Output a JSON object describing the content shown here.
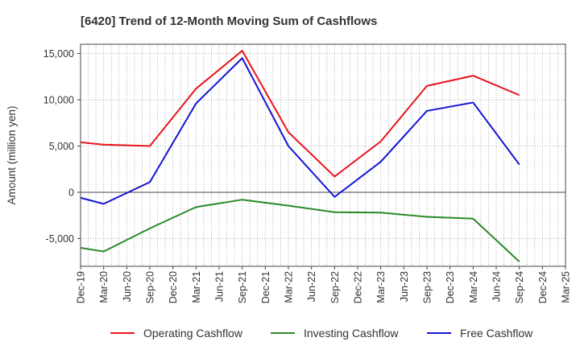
{
  "chart_data": {
    "type": "line",
    "title": "[6420]  Trend of 12-Month Moving Sum of Cashflows",
    "xlabel": "",
    "ylabel": "Amount (million yen)",
    "ylim": [
      -8000,
      16000
    ],
    "yticks": [
      15000,
      10000,
      5000,
      0,
      -5000
    ],
    "ytick_labels": [
      "15,000",
      "10,000",
      "5,000",
      "0",
      "-5,000"
    ],
    "categories": [
      "Dec-19",
      "Mar-20",
      "Jun-20",
      "Sep-20",
      "Dec-20",
      "Mar-21",
      "Jun-21",
      "Sep-21",
      "Dec-21",
      "Mar-22",
      "Jun-22",
      "Sep-22",
      "Dec-22",
      "Mar-23",
      "Jun-23",
      "Sep-23",
      "Dec-23",
      "Mar-24",
      "Jun-24",
      "Sep-24",
      "Dec-24",
      "Mar-25"
    ],
    "grid": true,
    "legend_position": "bottom",
    "series": [
      {
        "name": "Operating Cashflow",
        "color": "#e8141c",
        "points": [
          [
            "Dec-19",
            5400
          ],
          [
            "Mar-20",
            5150
          ],
          [
            "Sep-20",
            5000
          ],
          [
            "Mar-21",
            11200
          ],
          [
            "Sep-21",
            15300
          ],
          [
            "Mar-22",
            6500
          ],
          [
            "Sep-22",
            1700
          ],
          [
            "Mar-23",
            5500
          ],
          [
            "Sep-23",
            11500
          ],
          [
            "Mar-24",
            12600
          ],
          [
            "Sep-24",
            10500
          ]
        ]
      },
      {
        "name": "Investing Cashflow",
        "color": "#2a8a2a",
        "points": [
          [
            "Dec-19",
            -6000
          ],
          [
            "Mar-20",
            -6400
          ],
          [
            "Sep-20",
            -3900
          ],
          [
            "Mar-21",
            -1600
          ],
          [
            "Sep-21",
            -800
          ],
          [
            "Mar-22",
            -1450
          ],
          [
            "Sep-22",
            -2150
          ],
          [
            "Mar-23",
            -2200
          ],
          [
            "Sep-23",
            -2650
          ],
          [
            "Mar-24",
            -2850
          ],
          [
            "Sep-24",
            -7500
          ]
        ]
      },
      {
        "name": "Free Cashflow",
        "color": "#1414d6",
        "points": [
          [
            "Dec-19",
            -600
          ],
          [
            "Mar-20",
            -1250
          ],
          [
            "Sep-20",
            1100
          ],
          [
            "Mar-21",
            9600
          ],
          [
            "Sep-21",
            14500
          ],
          [
            "Mar-22",
            5000
          ],
          [
            "Sep-22",
            -500
          ],
          [
            "Mar-23",
            3300
          ],
          [
            "Sep-23",
            8800
          ],
          [
            "Mar-24",
            9700
          ],
          [
            "Sep-24",
            3000
          ]
        ]
      }
    ]
  }
}
